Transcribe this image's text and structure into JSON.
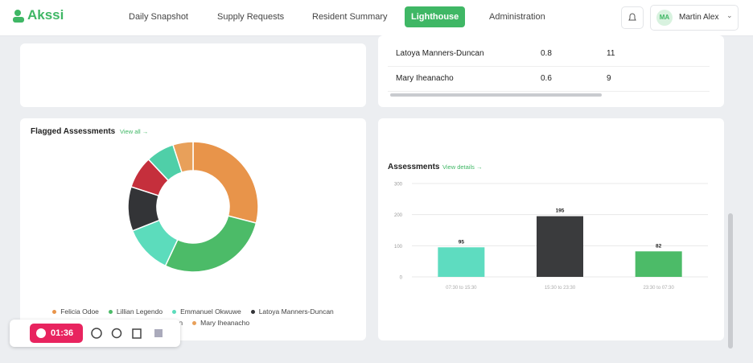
{
  "nav": {
    "logo": "Akssi",
    "tabs": [
      "Daily Snapshot",
      "Supply Requests",
      "Resident Summary",
      "Lighthouse",
      "Administration"
    ],
    "active": 3,
    "user_initials": "MA",
    "user_name": "Martin Alex"
  },
  "table": {
    "rows": [
      [
        "Latoya Manners-Duncan",
        "0.8",
        "11"
      ],
      [
        "Mary Iheanacho",
        "0.6",
        "9"
      ]
    ]
  },
  "recorder": {
    "time": "01:36"
  },
  "chart_data": [
    {
      "type": "pie",
      "title": "Flagged Assessments",
      "link": "View all →",
      "categories": [
        "Felicia Odoe",
        "Lillian Legendo",
        "Emmanuel Okwuwe",
        "Latoya Manners-Duncan",
        null,
        "Naomi Oken",
        "Mary Iheanacho"
      ],
      "values": [
        29,
        28,
        12,
        11,
        8,
        7,
        5
      ],
      "colors": [
        "#e8944a",
        "#4cbb68",
        "#5cdcbc",
        "#333437",
        "#c52f3c",
        "#4fcfa8",
        "#e8a05a"
      ]
    },
    {
      "type": "bar",
      "title": "Assessments",
      "link": "View details →",
      "categories": [
        "07:30 to 15:30",
        "15:30 to 23:30",
        "23:30 to 07:30"
      ],
      "values": [
        95,
        195,
        82
      ],
      "colors": [
        "#5edcc0",
        "#3a3b3d",
        "#4cbb68"
      ],
      "ylim": [
        0,
        300
      ],
      "yticks": [
        0,
        100,
        200,
        300
      ],
      "grid": true
    }
  ]
}
